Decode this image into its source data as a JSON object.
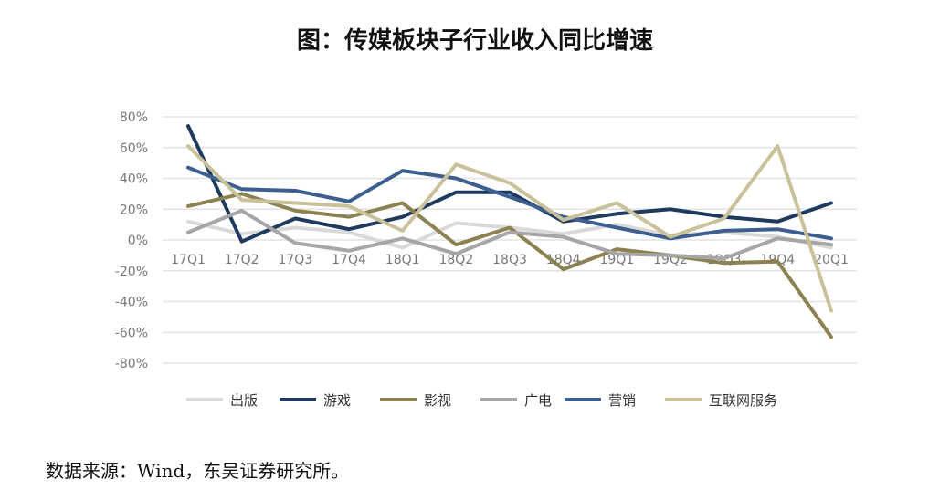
{
  "title": "图：传媒板块子行业收入同比增速",
  "source": "数据来源：Wind，东吴证券研究所。",
  "chart_data": {
    "type": "line",
    "categories": [
      "17Q1",
      "17Q2",
      "17Q3",
      "17Q4",
      "18Q1",
      "18Q2",
      "18Q3",
      "18Q4",
      "19Q1",
      "19Q2",
      "19Q3",
      "19Q4",
      "20Q1"
    ],
    "y_ticks": [
      "80%",
      "60%",
      "40%",
      "20%",
      "0%",
      "-20%",
      "-40%",
      "-60%",
      "-80%"
    ],
    "ylim": [
      -80,
      80
    ],
    "grid": true,
    "legend_position": "bottom",
    "series": [
      {
        "name": "出版",
        "color": "#d9d9d9",
        "values": [
          12,
          4,
          8,
          5,
          -5,
          11,
          8,
          4,
          10,
          3,
          5,
          2,
          -5
        ]
      },
      {
        "name": "游戏",
        "color": "#1f3a5f",
        "values": [
          74,
          -1,
          14,
          7,
          15,
          31,
          31,
          12,
          17,
          20,
          15,
          12,
          24
        ]
      },
      {
        "name": "影视",
        "color": "#8c8150",
        "values": [
          22,
          30,
          19,
          15,
          24,
          -3,
          8,
          -19,
          -6,
          -10,
          -15,
          -14,
          -63
        ]
      },
      {
        "name": "广电",
        "color": "#a6a6a6",
        "values": [
          5,
          19,
          -2,
          -7,
          1,
          -9,
          5,
          2,
          -9,
          -10,
          -12,
          1,
          -3
        ]
      },
      {
        "name": "营销",
        "color": "#3d5f8f",
        "values": [
          47,
          33,
          32,
          25,
          45,
          40,
          28,
          15,
          8,
          1,
          6,
          7,
          1
        ]
      },
      {
        "name": "互联网服务",
        "color": "#c9c199",
        "values": [
          61,
          26,
          24,
          22,
          6,
          49,
          37,
          13,
          24,
          2,
          14,
          61,
          -46
        ]
      }
    ]
  }
}
